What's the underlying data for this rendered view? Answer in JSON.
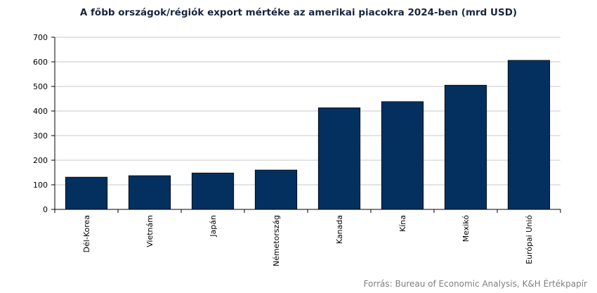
{
  "chart_data": {
    "type": "bar",
    "title": "A főbb országok/régiók export mértéke az amerikai piacokra 2024-ben (mrd USD)",
    "categories": [
      "Dél-Korea",
      "Vietnám",
      "Japán",
      "Németország",
      "Kanada",
      "Kína",
      "Mexikó",
      "Európai Unió"
    ],
    "values": [
      131,
      137,
      148,
      160,
      413,
      438,
      505,
      606
    ],
    "ylim": [
      0,
      700
    ],
    "yticks": [
      0,
      100,
      200,
      300,
      400,
      500,
      600,
      700
    ],
    "bar_color": "#03305f",
    "grid": true,
    "source": "Forrás: Bureau of Economic Analysis, K&H Értékpapír"
  }
}
